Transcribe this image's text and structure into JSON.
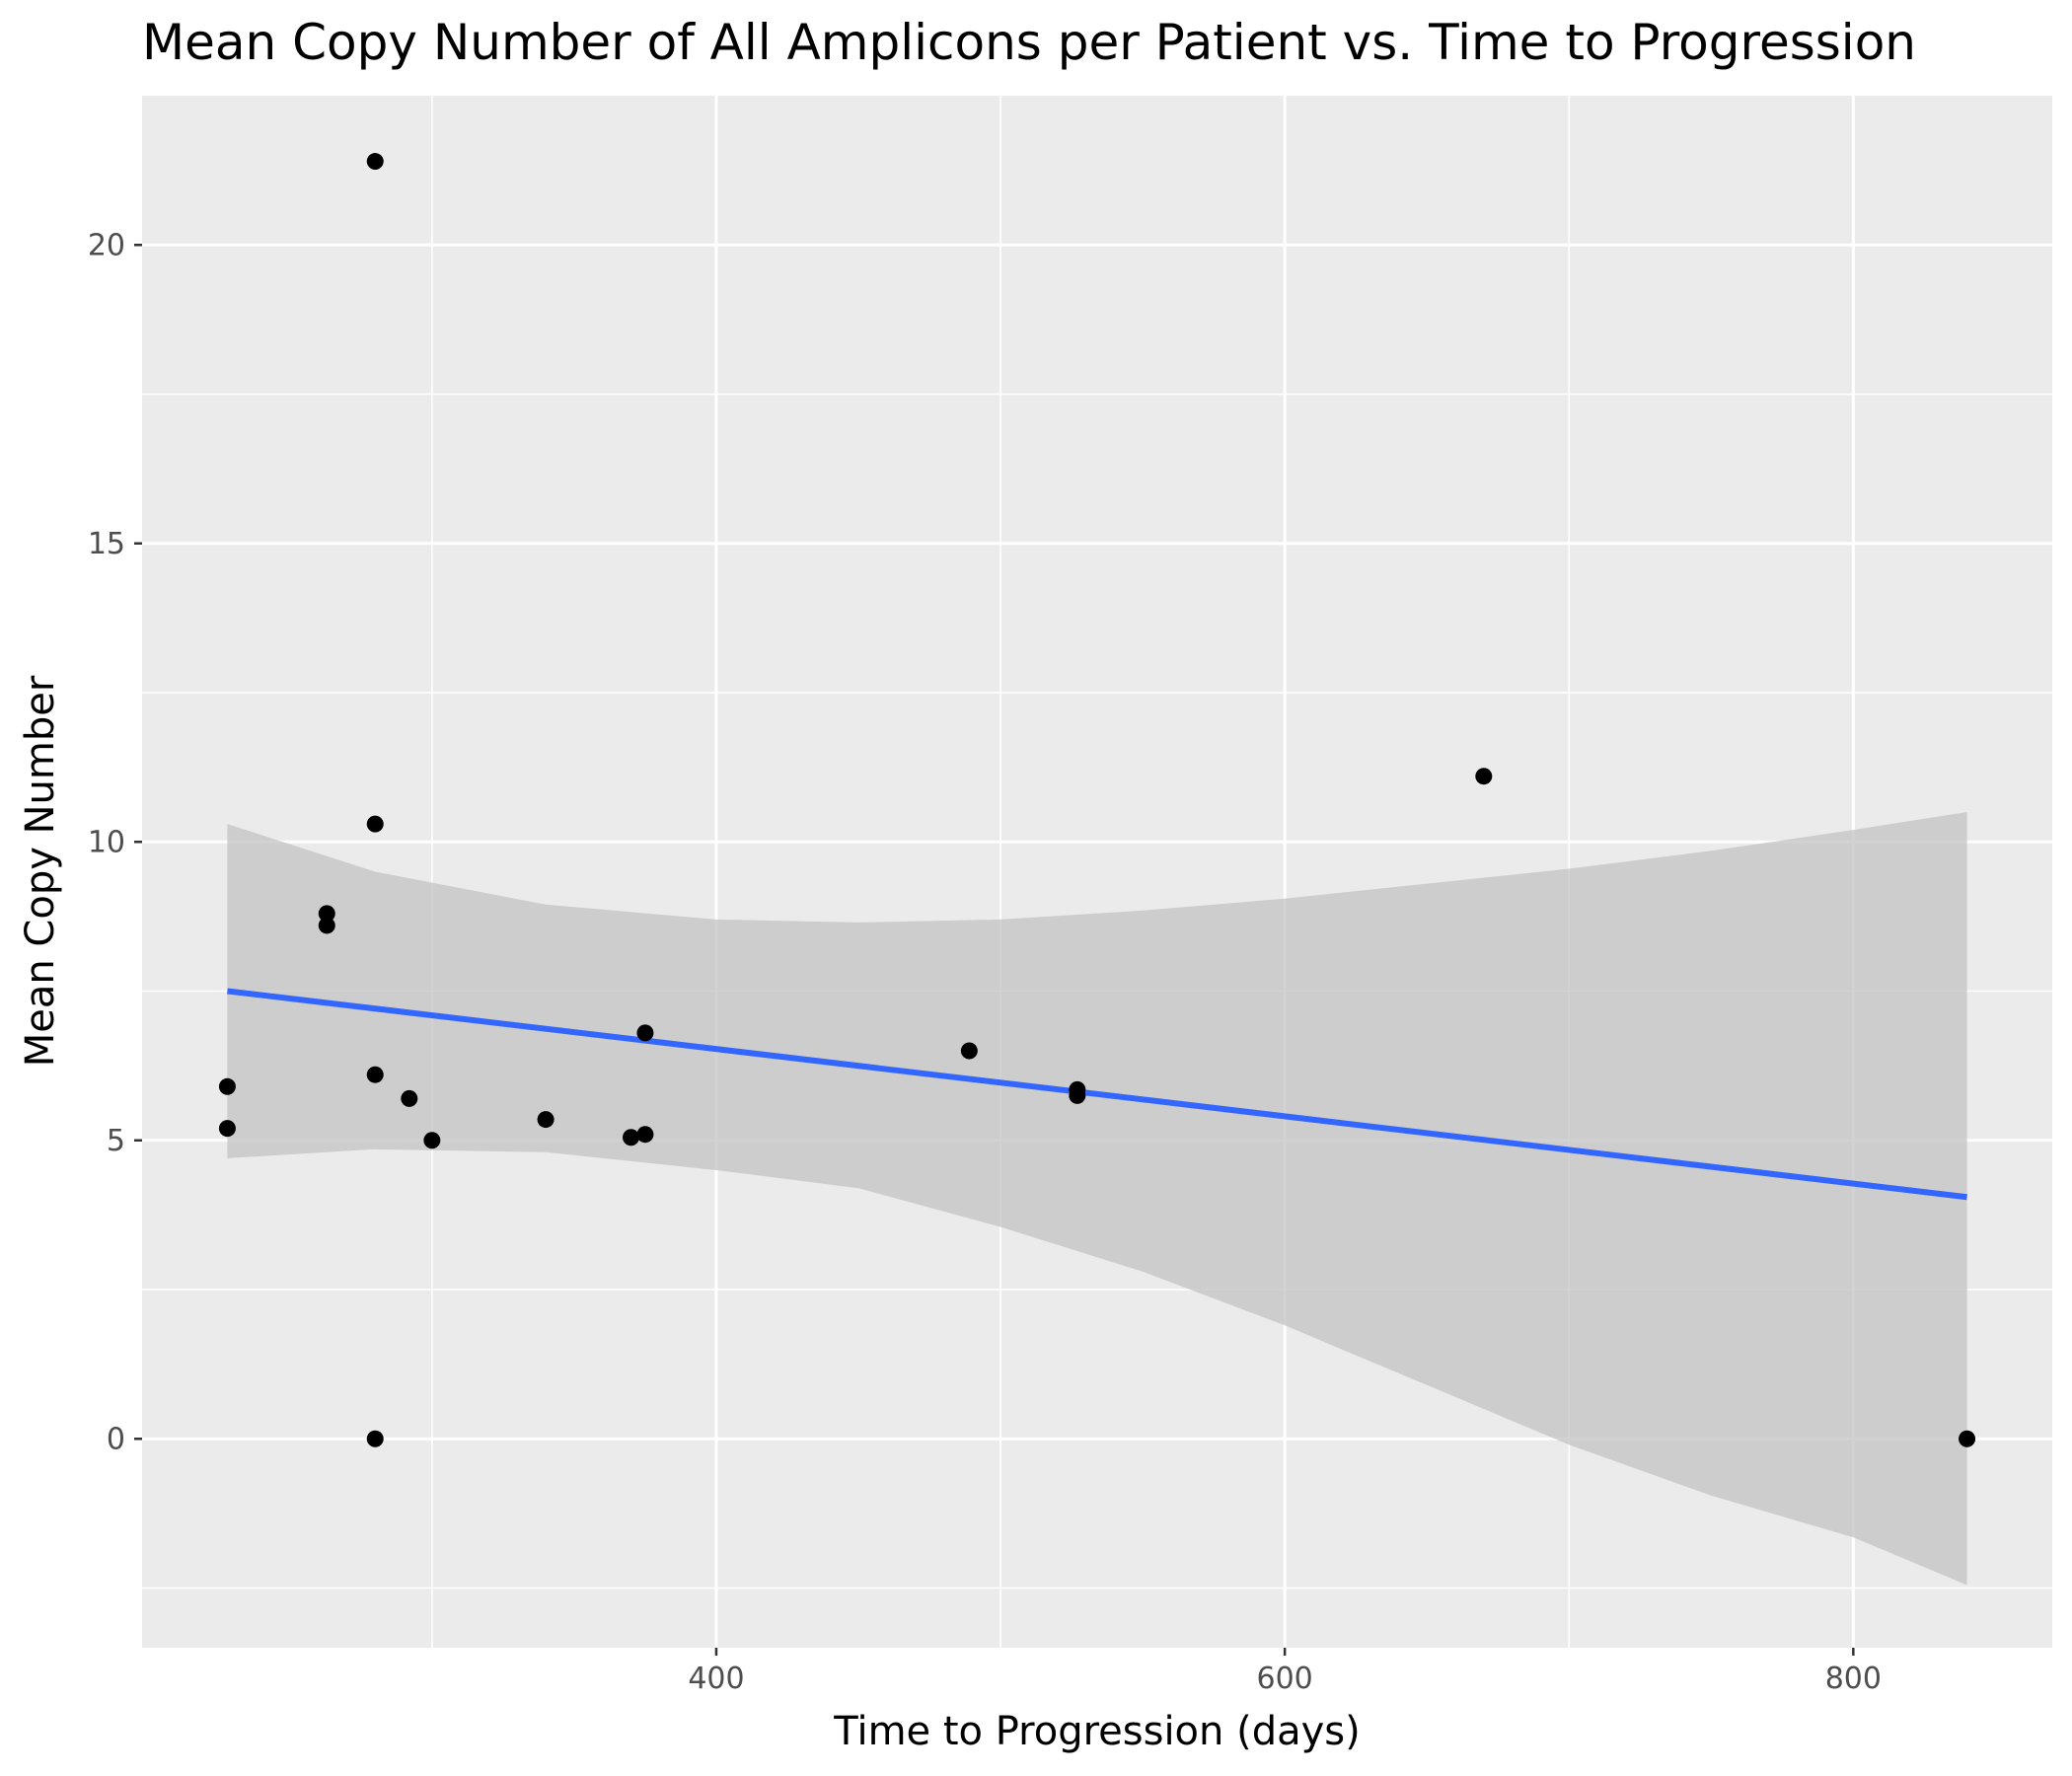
{
  "chart_data": {
    "type": "scatter",
    "title": "Mean Copy Number of All Amplicons per Patient vs. Time to Progression",
    "xlabel": "Time to Progression (days)",
    "ylabel": "Mean Copy Number",
    "xlim": [
      198,
      870
    ],
    "ylim": [
      -3.5,
      22.5
    ],
    "x_ticks": [
      400,
      600,
      800
    ],
    "x_minor_ticks": [
      300,
      500,
      700
    ],
    "y_ticks": [
      0,
      5,
      10,
      15,
      20
    ],
    "y_minor_ticks": [
      -2.5,
      2.5,
      7.5,
      12.5,
      17.5
    ],
    "grid": true,
    "colors": {
      "panel": "#ebebeb",
      "grid": "#ffffff",
      "points": "#000000",
      "fit_line": "#3366ff",
      "confidence_band": "#c0c0c0"
    },
    "points": [
      {
        "x": 228,
        "y": 5.9
      },
      {
        "x": 228,
        "y": 5.2
      },
      {
        "x": 263,
        "y": 8.8
      },
      {
        "x": 263,
        "y": 8.6
      },
      {
        "x": 280,
        "y": 21.4
      },
      {
        "x": 280,
        "y": 10.3
      },
      {
        "x": 280,
        "y": 6.1
      },
      {
        "x": 280,
        "y": 0.0
      },
      {
        "x": 292,
        "y": 5.7
      },
      {
        "x": 300,
        "y": 5.0
      },
      {
        "x": 340,
        "y": 5.35
      },
      {
        "x": 370,
        "y": 5.05
      },
      {
        "x": 375,
        "y": 6.8
      },
      {
        "x": 375,
        "y": 5.1
      },
      {
        "x": 489,
        "y": 6.5
      },
      {
        "x": 527,
        "y": 5.85
      },
      {
        "x": 527,
        "y": 5.75
      },
      {
        "x": 670,
        "y": 11.1
      },
      {
        "x": 840,
        "y": 0.0
      }
    ],
    "fit_line": {
      "x": [
        228,
        840
      ],
      "y": [
        7.5,
        4.05
      ]
    },
    "confidence_band": {
      "x": [
        228,
        280,
        340,
        400,
        450,
        500,
        550,
        600,
        650,
        700,
        750,
        800,
        840
      ],
      "upper": [
        10.3,
        9.5,
        8.95,
        8.7,
        8.65,
        8.7,
        8.85,
        9.05,
        9.3,
        9.55,
        9.85,
        10.2,
        10.5
      ],
      "lower": [
        4.7,
        4.85,
        4.8,
        4.5,
        4.2,
        3.55,
        2.8,
        1.9,
        0.9,
        -0.1,
        -0.95,
        -1.65,
        -2.45
      ]
    }
  }
}
